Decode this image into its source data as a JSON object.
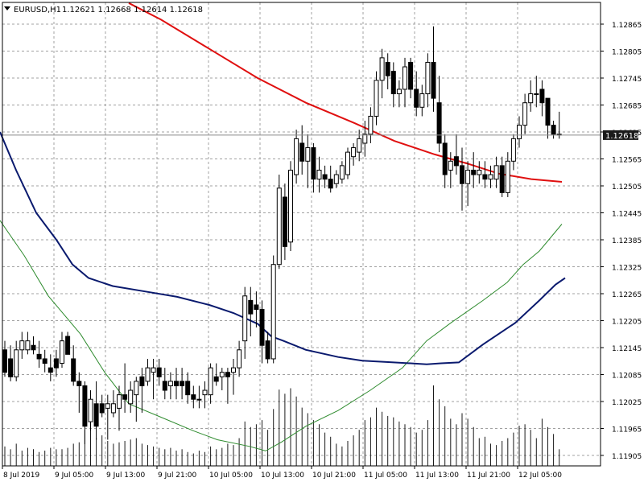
{
  "header": {
    "symbol": "EURUSD,H1",
    "ohlc": "1.12621 1.12668 1.12614 1.12618"
  },
  "colors": {
    "background": "#ffffff",
    "grid": "#a0a0a0",
    "bull_candle": "#ffffff",
    "bear_candle": "#000000",
    "ma_fast": "#2e8b2e",
    "ma_mid": "#e01010",
    "ma_slow": "#0a1a6e",
    "volume": "#1a1a1a",
    "price_tag": "#1a1a1a"
  },
  "chart_data": {
    "type": "candlestick",
    "symbol": "EURUSD",
    "timeframe": "H1",
    "grid": true,
    "current_price": 1.12618,
    "ylim": [
      1.1189,
      1.1292
    ],
    "y_ticks": [
      "1.12865",
      "1.12805",
      "1.12745",
      "1.12685",
      "1.12625",
      "1.12565",
      "1.12505",
      "1.12445",
      "1.12385",
      "1.12325",
      "1.12265",
      "1.12205",
      "1.12145",
      "1.12085",
      "1.12025",
      "1.11965",
      "1.11905"
    ],
    "x_ticks": [
      "8 Jul 2019",
      "9 Jul 05:00",
      "9 Jul 13:00",
      "9 Jul 21:00",
      "10 Jul 05:00",
      "10 Jul 13:00",
      "10 Jul 21:00",
      "11 Jul 05:00",
      "11 Jul 13:00",
      "11 Jul 21:00",
      "12 Jul 05:00"
    ],
    "candles": [
      {
        "o": 1.1214,
        "h": 1.1216,
        "l": 1.1208,
        "c": 1.1209
      },
      {
        "o": 1.1212,
        "h": 1.1215,
        "l": 1.1207,
        "c": 1.1208
      },
      {
        "o": 1.1208,
        "h": 1.1216,
        "l": 1.1207,
        "c": 1.1214
      },
      {
        "o": 1.1214,
        "h": 1.1218,
        "l": 1.1212,
        "c": 1.1216
      },
      {
        "o": 1.1214,
        "h": 1.1218,
        "l": 1.1213,
        "c": 1.1216
      },
      {
        "o": 1.1215,
        "h": 1.1217,
        "l": 1.1213,
        "c": 1.1214
      },
      {
        "o": 1.1213,
        "h": 1.1216,
        "l": 1.121,
        "c": 1.1212
      },
      {
        "o": 1.1212,
        "h": 1.1214,
        "l": 1.1209,
        "c": 1.1211
      },
      {
        "o": 1.121,
        "h": 1.1213,
        "l": 1.1207,
        "c": 1.1209
      },
      {
        "o": 1.1212,
        "h": 1.1214,
        "l": 1.1208,
        "c": 1.121
      },
      {
        "o": 1.1211,
        "h": 1.1218,
        "l": 1.121,
        "c": 1.1216
      },
      {
        "o": 1.1217,
        "h": 1.1218,
        "l": 1.1213,
        "c": 1.1213
      },
      {
        "o": 1.1212,
        "h": 1.1215,
        "l": 1.1206,
        "c": 1.1207
      },
      {
        "o": 1.1207,
        "h": 1.1209,
        "l": 1.12,
        "c": 1.1206
      },
      {
        "o": 1.1206,
        "h": 1.1207,
        "l": 1.1193,
        "c": 1.1197
      },
      {
        "o": 1.1198,
        "h": 1.1205,
        "l": 1.1196,
        "c": 1.1203
      },
      {
        "o": 1.1202,
        "h": 1.1207,
        "l": 1.1194,
        "c": 1.1197
      },
      {
        "o": 1.1202,
        "h": 1.1204,
        "l": 1.1199,
        "c": 1.12
      },
      {
        "o": 1.1201,
        "h": 1.1204,
        "l": 1.1194,
        "c": 1.1202
      },
      {
        "o": 1.12,
        "h": 1.1205,
        "l": 1.1199,
        "c": 1.1202
      },
      {
        "o": 1.1201,
        "h": 1.1206,
        "l": 1.1196,
        "c": 1.1204
      },
      {
        "o": 1.1204,
        "h": 1.1211,
        "l": 1.12,
        "c": 1.1203
      },
      {
        "o": 1.1202,
        "h": 1.1207,
        "l": 1.12,
        "c": 1.1205
      },
      {
        "o": 1.1204,
        "h": 1.1208,
        "l": 1.1198,
        "c": 1.1207
      },
      {
        "o": 1.1208,
        "h": 1.121,
        "l": 1.12,
        "c": 1.1206
      },
      {
        "o": 1.1207,
        "h": 1.1212,
        "l": 1.1206,
        "c": 1.121
      },
      {
        "o": 1.1209,
        "h": 1.1212,
        "l": 1.1203,
        "c": 1.121
      },
      {
        "o": 1.121,
        "h": 1.1212,
        "l": 1.1206,
        "c": 1.1208
      },
      {
        "o": 1.1207,
        "h": 1.121,
        "l": 1.1203,
        "c": 1.1205
      },
      {
        "o": 1.1206,
        "h": 1.1209,
        "l": 1.1203,
        "c": 1.1207
      },
      {
        "o": 1.1207,
        "h": 1.121,
        "l": 1.1203,
        "c": 1.1206
      },
      {
        "o": 1.1207,
        "h": 1.121,
        "l": 1.1203,
        "c": 1.1206
      },
      {
        "o": 1.1207,
        "h": 1.1209,
        "l": 1.1202,
        "c": 1.1204
      },
      {
        "o": 1.1204,
        "h": 1.1206,
        "l": 1.1201,
        "c": 1.1203
      },
      {
        "o": 1.1203,
        "h": 1.1206,
        "l": 1.1201,
        "c": 1.1203
      },
      {
        "o": 1.1204,
        "h": 1.1207,
        "l": 1.1201,
        "c": 1.1205
      },
      {
        "o": 1.1204,
        "h": 1.1211,
        "l": 1.1202,
        "c": 1.121
      },
      {
        "o": 1.1208,
        "h": 1.1211,
        "l": 1.1206,
        "c": 1.1207
      },
      {
        "o": 1.1208,
        "h": 1.121,
        "l": 1.1205,
        "c": 1.1209
      },
      {
        "o": 1.1209,
        "h": 1.121,
        "l": 1.1202,
        "c": 1.1208
      },
      {
        "o": 1.1209,
        "h": 1.1212,
        "l": 1.1204,
        "c": 1.121
      },
      {
        "o": 1.121,
        "h": 1.1216,
        "l": 1.1208,
        "c": 1.1214
      },
      {
        "o": 1.1216,
        "h": 1.1228,
        "l": 1.1212,
        "c": 1.1226
      },
      {
        "o": 1.1225,
        "h": 1.1228,
        "l": 1.1217,
        "c": 1.1222
      },
      {
        "o": 1.1224,
        "h": 1.1227,
        "l": 1.1219,
        "c": 1.1223
      },
      {
        "o": 1.1223,
        "h": 1.1225,
        "l": 1.1211,
        "c": 1.1215
      },
      {
        "o": 1.1216,
        "h": 1.1218,
        "l": 1.1211,
        "c": 1.1212
      },
      {
        "o": 1.1212,
        "h": 1.1235,
        "l": 1.1211,
        "c": 1.1233
      },
      {
        "o": 1.1233,
        "h": 1.1253,
        "l": 1.1232,
        "c": 1.125
      },
      {
        "o": 1.1248,
        "h": 1.1251,
        "l": 1.1234,
        "c": 1.1237
      },
      {
        "o": 1.1238,
        "h": 1.1256,
        "l": 1.1236,
        "c": 1.1254
      },
      {
        "o": 1.1253,
        "h": 1.1263,
        "l": 1.1251,
        "c": 1.1261
      },
      {
        "o": 1.126,
        "h": 1.1264,
        "l": 1.1253,
        "c": 1.1256
      },
      {
        "o": 1.1256,
        "h": 1.1262,
        "l": 1.125,
        "c": 1.1259
      },
      {
        "o": 1.1259,
        "h": 1.126,
        "l": 1.1249,
        "c": 1.1252
      },
      {
        "o": 1.1252,
        "h": 1.1257,
        "l": 1.1249,
        "c": 1.1254
      },
      {
        "o": 1.1253,
        "h": 1.1255,
        "l": 1.125,
        "c": 1.1252
      },
      {
        "o": 1.1252,
        "h": 1.1255,
        "l": 1.1249,
        "c": 1.125
      },
      {
        "o": 1.1251,
        "h": 1.1254,
        "l": 1.125,
        "c": 1.1253
      },
      {
        "o": 1.1252,
        "h": 1.1256,
        "l": 1.1251,
        "c": 1.1255
      },
      {
        "o": 1.1253,
        "h": 1.1259,
        "l": 1.1252,
        "c": 1.1258
      },
      {
        "o": 1.1257,
        "h": 1.126,
        "l": 1.1255,
        "c": 1.1259
      },
      {
        "o": 1.1258,
        "h": 1.1263,
        "l": 1.1256,
        "c": 1.1261
      },
      {
        "o": 1.126,
        "h": 1.1265,
        "l": 1.1257,
        "c": 1.1262
      },
      {
        "o": 1.1262,
        "h": 1.1268,
        "l": 1.126,
        "c": 1.1266
      },
      {
        "o": 1.1266,
        "h": 1.1276,
        "l": 1.1264,
        "c": 1.1274
      },
      {
        "o": 1.1274,
        "h": 1.1281,
        "l": 1.127,
        "c": 1.1279
      },
      {
        "o": 1.1278,
        "h": 1.128,
        "l": 1.1272,
        "c": 1.1275
      },
      {
        "o": 1.1276,
        "h": 1.1278,
        "l": 1.1268,
        "c": 1.1271
      },
      {
        "o": 1.1271,
        "h": 1.1274,
        "l": 1.1268,
        "c": 1.1272
      },
      {
        "o": 1.1272,
        "h": 1.1279,
        "l": 1.1268,
        "c": 1.1277
      },
      {
        "o": 1.1278,
        "h": 1.1279,
        "l": 1.127,
        "c": 1.1272
      },
      {
        "o": 1.1272,
        "h": 1.1276,
        "l": 1.1266,
        "c": 1.1268
      },
      {
        "o": 1.1268,
        "h": 1.1273,
        "l": 1.1266,
        "c": 1.1271
      },
      {
        "o": 1.1271,
        "h": 1.128,
        "l": 1.1268,
        "c": 1.1278
      },
      {
        "o": 1.1278,
        "h": 1.1286,
        "l": 1.1267,
        "c": 1.127
      },
      {
        "o": 1.1269,
        "h": 1.1275,
        "l": 1.1258,
        "c": 1.126
      },
      {
        "o": 1.126,
        "h": 1.1262,
        "l": 1.125,
        "c": 1.1253
      },
      {
        "o": 1.1254,
        "h": 1.1258,
        "l": 1.125,
        "c": 1.1256
      },
      {
        "o": 1.1257,
        "h": 1.1262,
        "l": 1.1253,
        "c": 1.1255
      },
      {
        "o": 1.1255,
        "h": 1.1259,
        "l": 1.1245,
        "c": 1.1251
      },
      {
        "o": 1.1251,
        "h": 1.1256,
        "l": 1.1246,
        "c": 1.1254
      },
      {
        "o": 1.1254,
        "h": 1.1258,
        "l": 1.125,
        "c": 1.1253
      },
      {
        "o": 1.1253,
        "h": 1.1256,
        "l": 1.1251,
        "c": 1.1254
      },
      {
        "o": 1.1253,
        "h": 1.1256,
        "l": 1.125,
        "c": 1.1252
      },
      {
        "o": 1.1252,
        "h": 1.1255,
        "l": 1.125,
        "c": 1.1253
      },
      {
        "o": 1.1252,
        "h": 1.1257,
        "l": 1.125,
        "c": 1.1255
      },
      {
        "o": 1.1255,
        "h": 1.1257,
        "l": 1.1248,
        "c": 1.1249
      },
      {
        "o": 1.1249,
        "h": 1.1258,
        "l": 1.1248,
        "c": 1.1256
      },
      {
        "o": 1.1256,
        "h": 1.1262,
        "l": 1.1254,
        "c": 1.1261
      },
      {
        "o": 1.1261,
        "h": 1.1266,
        "l": 1.1259,
        "c": 1.1264
      },
      {
        "o": 1.1264,
        "h": 1.1271,
        "l": 1.1262,
        "c": 1.1269
      },
      {
        "o": 1.1269,
        "h": 1.1274,
        "l": 1.1267,
        "c": 1.1271
      },
      {
        "o": 1.1271,
        "h": 1.1275,
        "l": 1.1268,
        "c": 1.1271
      },
      {
        "o": 1.1272,
        "h": 1.1274,
        "l": 1.1266,
        "c": 1.1269
      },
      {
        "o": 1.127,
        "h": 1.127,
        "l": 1.1261,
        "c": 1.1264
      },
      {
        "o": 1.1264,
        "h": 1.1265,
        "l": 1.1261,
        "c": 1.1262
      },
      {
        "o": 1.1262,
        "h": 1.1267,
        "l": 1.1261,
        "c": 1.1262
      }
    ],
    "volume": [
      0.14,
      0.12,
      0.16,
      0.11,
      0.13,
      0.12,
      0.1,
      0.11,
      0.13,
      0.12,
      0.12,
      0.13,
      0.16,
      0.17,
      0.26,
      0.3,
      0.2,
      0.22,
      0.18,
      0.16,
      0.17,
      0.18,
      0.19,
      0.2,
      0.16,
      0.15,
      0.14,
      0.13,
      0.12,
      0.13,
      0.11,
      0.12,
      0.1,
      0.09,
      0.11,
      0.1,
      0.14,
      0.12,
      0.13,
      0.16,
      0.15,
      0.2,
      0.32,
      0.28,
      0.3,
      0.33,
      0.26,
      0.41,
      0.55,
      0.52,
      0.56,
      0.5,
      0.42,
      0.38,
      0.33,
      0.3,
      0.24,
      0.21,
      0.16,
      0.14,
      0.18,
      0.22,
      0.26,
      0.33,
      0.35,
      0.42,
      0.39,
      0.36,
      0.35,
      0.32,
      0.3,
      0.28,
      0.24,
      0.26,
      0.33,
      0.58,
      0.48,
      0.43,
      0.34,
      0.3,
      0.38,
      0.34,
      0.28,
      0.2,
      0.21,
      0.16,
      0.15,
      0.18,
      0.2,
      0.24,
      0.29,
      0.3,
      0.26,
      0.2,
      0.34,
      0.28,
      0.23,
      0.12
    ],
    "ma_slow": [
      [
        0,
        1.12625
      ],
      [
        20,
        1.1254
      ],
      [
        45,
        1.12445
      ],
      [
        70,
        1.12385
      ],
      [
        90,
        1.1233
      ],
      [
        110,
        1.123
      ],
      [
        140,
        1.12282
      ],
      [
        180,
        1.1227
      ],
      [
        220,
        1.12258
      ],
      [
        260,
        1.1224
      ],
      [
        290,
        1.12222
      ],
      [
        320,
        1.12198
      ],
      [
        337,
        1.1217
      ],
      [
        352,
        1.1216
      ],
      [
        380,
        1.1214
      ],
      [
        420,
        1.12124
      ],
      [
        450,
        1.12116
      ],
      [
        480,
        1.12113
      ],
      [
        510,
        1.1211
      ],
      [
        530,
        1.12108
      ],
      [
        548,
        1.1211
      ],
      [
        570,
        1.12112
      ],
      [
        600,
        1.12152
      ],
      [
        640,
        1.122
      ],
      [
        670,
        1.1225
      ],
      [
        690,
        1.12285
      ],
      [
        702,
        1.123
      ]
    ],
    "ma_mid": [
      [
        160,
        1.12912
      ],
      [
        200,
        1.12875
      ],
      [
        260,
        1.1281
      ],
      [
        320,
        1.12745
      ],
      [
        380,
        1.1269
      ],
      [
        440,
        1.12645
      ],
      [
        490,
        1.12605
      ],
      [
        540,
        1.12575
      ],
      [
        580,
        1.12555
      ],
      [
        620,
        1.12532
      ],
      [
        660,
        1.1252
      ],
      [
        698,
        1.12514
      ]
    ],
    "ma_fast": [
      [
        0,
        1.12428
      ],
      [
        30,
        1.1235
      ],
      [
        60,
        1.1226
      ],
      [
        100,
        1.12175
      ],
      [
        130,
        1.1209
      ],
      [
        160,
        1.1202
      ],
      [
        200,
        1.1199
      ],
      [
        240,
        1.1196
      ],
      [
        270,
        1.1194
      ],
      [
        310,
        1.11925
      ],
      [
        330,
        1.11915
      ],
      [
        350,
        1.11935
      ],
      [
        380,
        1.1197
      ],
      [
        420,
        1.12005
      ],
      [
        460,
        1.1205
      ],
      [
        500,
        1.121
      ],
      [
        530,
        1.1216
      ],
      [
        560,
        1.122
      ],
      [
        600,
        1.1225
      ],
      [
        630,
        1.1229
      ],
      [
        650,
        1.1233
      ],
      [
        670,
        1.1236
      ],
      [
        698,
        1.1242
      ]
    ]
  }
}
